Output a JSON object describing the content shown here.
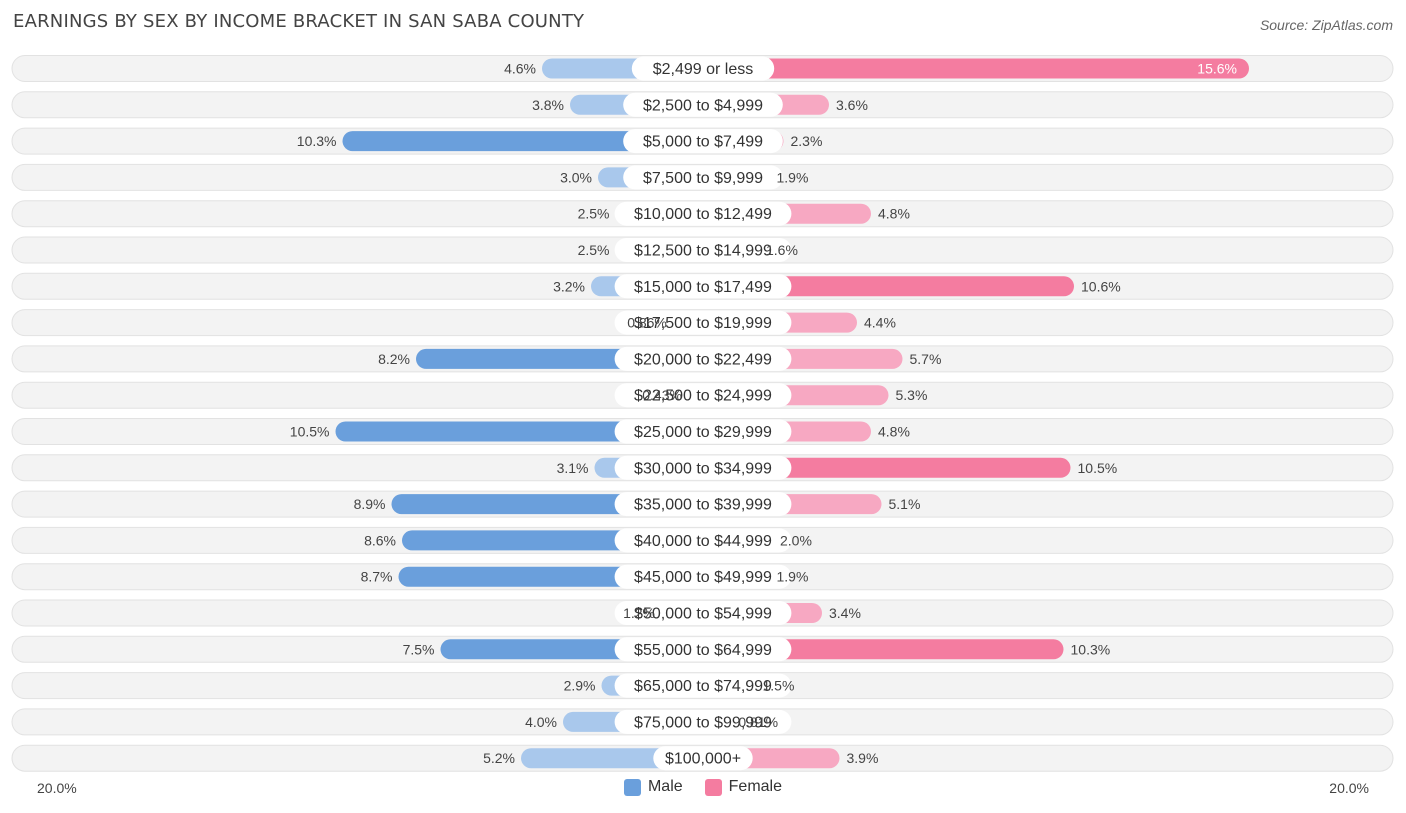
{
  "title": "EARNINGS BY SEX BY INCOME BRACKET IN SAN SABA COUNTY",
  "source": "Source: ZipAtlas.com",
  "axis": {
    "left_label": "20.0%",
    "right_label": "20.0%"
  },
  "legend": [
    {
      "label": "Male",
      "color": "#6a9fdc"
    },
    {
      "label": "Female",
      "color": "#f47ca0"
    }
  ],
  "colors": {
    "male_strong": "#6a9fdc",
    "male_light": "#a9c8ec",
    "female_strong": "#f47ca0",
    "female_light": "#f7a8c2",
    "row_bg": "#f3f3f3",
    "row_border": "#e2e2e2"
  },
  "chart_data": {
    "type": "bar",
    "orientation": "horizontal-diverging",
    "title": "EARNINGS BY SEX BY INCOME BRACKET IN SAN SABA COUNTY",
    "xlim": [
      -20,
      20
    ],
    "categories": [
      "$2,499 or less",
      "$2,500 to $4,999",
      "$5,000 to $7,499",
      "$7,500 to $9,999",
      "$10,000 to $12,499",
      "$12,500 to $14,999",
      "$15,000 to $17,499",
      "$17,500 to $19,999",
      "$20,000 to $22,499",
      "$22,500 to $24,999",
      "$25,000 to $29,999",
      "$30,000 to $34,999",
      "$35,000 to $39,999",
      "$40,000 to $44,999",
      "$45,000 to $49,999",
      "$50,000 to $54,999",
      "$55,000 to $64,999",
      "$65,000 to $74,999",
      "$75,000 to $99,999",
      "$100,000+"
    ],
    "series": [
      {
        "name": "Male",
        "values": [
          4.6,
          3.8,
          10.3,
          3.0,
          2.5,
          2.5,
          3.2,
          0.86,
          8.2,
          0.43,
          10.5,
          3.1,
          8.9,
          8.6,
          8.7,
          1.2,
          7.5,
          2.9,
          4.0,
          5.2
        ],
        "labels": [
          "4.6%",
          "3.8%",
          "10.3%",
          "3.0%",
          "2.5%",
          "2.5%",
          "3.2%",
          "0.86%",
          "8.2%",
          "0.43%",
          "10.5%",
          "3.1%",
          "8.9%",
          "8.6%",
          "8.7%",
          "1.2%",
          "7.5%",
          "2.9%",
          "4.0%",
          "5.2%"
        ]
      },
      {
        "name": "Female",
        "values": [
          15.6,
          3.6,
          2.3,
          1.9,
          4.8,
          1.6,
          10.6,
          4.4,
          5.7,
          5.3,
          4.8,
          10.5,
          5.1,
          2.0,
          1.9,
          3.4,
          10.3,
          1.5,
          0.81,
          3.9
        ],
        "labels": [
          "15.6%",
          "3.6%",
          "2.3%",
          "1.9%",
          "4.8%",
          "1.6%",
          "10.6%",
          "4.4%",
          "5.7%",
          "5.3%",
          "4.8%",
          "10.5%",
          "5.1%",
          "2.0%",
          "1.9%",
          "3.4%",
          "10.3%",
          "1.5%",
          "0.81%",
          "3.9%"
        ]
      }
    ]
  }
}
